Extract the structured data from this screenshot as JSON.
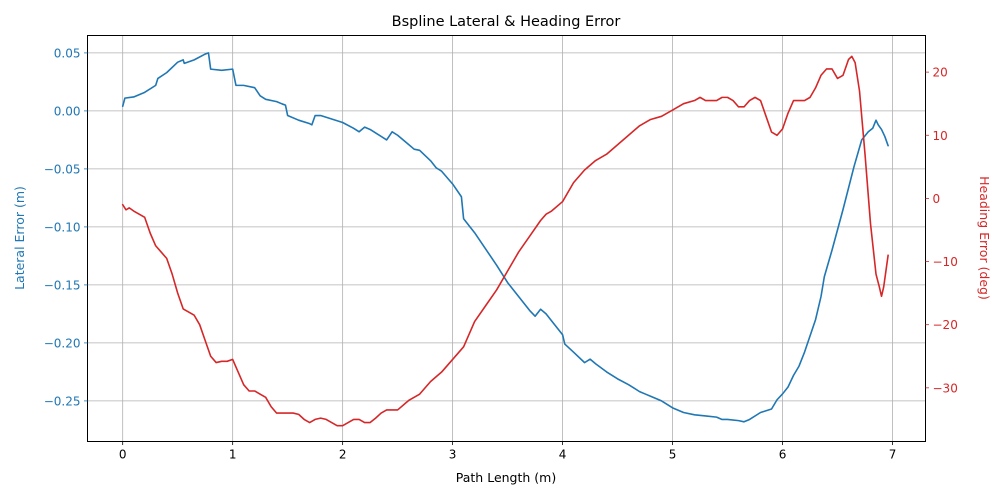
{
  "chart_data": {
    "type": "line",
    "title": "Bspline Lateral & Heading Error",
    "xlabel": "Path Length (m)",
    "ylabel_left": "Lateral Error (m)",
    "ylabel_right": "Heading Error (deg)",
    "xlim": [
      -0.32,
      7.3
    ],
    "ylim_left": [
      -0.285,
      0.065
    ],
    "ylim_right": [
      -38.5,
      25.8
    ],
    "grid": true,
    "x_ticks": [
      0,
      1,
      2,
      3,
      4,
      5,
      6,
      7
    ],
    "y_left_ticks": [
      0.05,
      0.0,
      -0.05,
      -0.1,
      -0.15,
      -0.2,
      -0.25
    ],
    "y_left_tick_labels": [
      "0.05",
      "0.00",
      "−0.05",
      "−0.10",
      "−0.15",
      "−0.20",
      "−0.25"
    ],
    "y_right_ticks": [
      20,
      10,
      0,
      -10,
      -20,
      -30
    ],
    "y_right_tick_labels": [
      "20",
      "10",
      "0",
      "−10",
      "−20",
      "−30"
    ],
    "colors": {
      "left": "#1f77b4",
      "right": "#d62728"
    },
    "series": [
      {
        "axis": "left",
        "x": [
          0.0,
          0.02,
          0.1,
          0.2,
          0.3,
          0.32,
          0.4,
          0.5,
          0.55,
          0.56,
          0.65,
          0.75,
          0.78,
          0.8,
          0.9,
          1.0,
          1.03,
          1.1,
          1.2,
          1.25,
          1.3,
          1.4,
          1.45,
          1.48,
          1.5,
          1.6,
          1.7,
          1.72,
          1.75,
          1.8,
          1.9,
          2.0,
          2.1,
          2.15,
          2.2,
          2.25,
          2.3,
          2.4,
          2.45,
          2.5,
          2.6,
          2.65,
          2.7,
          2.8,
          2.85,
          2.9,
          3.0,
          3.08,
          3.1,
          3.2,
          3.3,
          3.4,
          3.5,
          3.6,
          3.7,
          3.75,
          3.8,
          3.85,
          3.9,
          4.0,
          4.02,
          4.1,
          4.2,
          4.25,
          4.3,
          4.4,
          4.5,
          4.6,
          4.7,
          4.75,
          4.8,
          4.9,
          5.0,
          5.1,
          5.2,
          5.3,
          5.4,
          5.45,
          5.5,
          5.6,
          5.65,
          5.7,
          5.8,
          5.9,
          5.95,
          6.0,
          6.05,
          6.1,
          6.15,
          6.2,
          6.3,
          6.35,
          6.38,
          6.45,
          6.55,
          6.65,
          6.72,
          6.78,
          6.82,
          6.85,
          6.87,
          6.9,
          6.93,
          6.96
        ],
        "y": [
          0.004,
          0.011,
          0.012,
          0.016,
          0.022,
          0.028,
          0.033,
          0.042,
          0.044,
          0.041,
          0.044,
          0.049,
          0.05,
          0.036,
          0.035,
          0.036,
          0.022,
          0.022,
          0.02,
          0.013,
          0.01,
          0.008,
          0.006,
          0.005,
          -0.004,
          -0.008,
          -0.011,
          -0.012,
          -0.004,
          -0.004,
          -0.007,
          -0.01,
          -0.015,
          -0.018,
          -0.014,
          -0.016,
          -0.019,
          -0.025,
          -0.018,
          -0.021,
          -0.029,
          -0.033,
          -0.034,
          -0.043,
          -0.049,
          -0.052,
          -0.063,
          -0.074,
          -0.093,
          -0.105,
          -0.119,
          -0.133,
          -0.148,
          -0.16,
          -0.172,
          -0.177,
          -0.171,
          -0.175,
          -0.181,
          -0.193,
          -0.201,
          -0.208,
          -0.217,
          -0.214,
          -0.218,
          -0.225,
          -0.231,
          -0.236,
          -0.242,
          -0.244,
          -0.246,
          -0.25,
          -0.256,
          -0.26,
          -0.262,
          -0.263,
          -0.264,
          -0.266,
          -0.266,
          -0.267,
          -0.268,
          -0.266,
          -0.26,
          -0.257,
          -0.249,
          -0.244,
          -0.238,
          -0.228,
          -0.22,
          -0.208,
          -0.18,
          -0.16,
          -0.143,
          -0.12,
          -0.085,
          -0.048,
          -0.025,
          -0.018,
          -0.015,
          -0.008,
          -0.012,
          -0.016,
          -0.022,
          -0.03
        ]
      },
      {
        "axis": "right",
        "x": [
          0.0,
          0.03,
          0.06,
          0.1,
          0.15,
          0.2,
          0.25,
          0.3,
          0.35,
          0.4,
          0.45,
          0.5,
          0.55,
          0.6,
          0.65,
          0.7,
          0.75,
          0.8,
          0.85,
          0.9,
          0.95,
          1.0,
          1.05,
          1.1,
          1.15,
          1.2,
          1.25,
          1.3,
          1.35,
          1.4,
          1.45,
          1.5,
          1.55,
          1.6,
          1.65,
          1.7,
          1.75,
          1.8,
          1.85,
          1.9,
          1.95,
          2.0,
          2.05,
          2.1,
          2.15,
          2.2,
          2.25,
          2.3,
          2.35,
          2.4,
          2.45,
          2.5,
          2.6,
          2.7,
          2.8,
          2.9,
          3.0,
          3.1,
          3.2,
          3.3,
          3.4,
          3.5,
          3.6,
          3.7,
          3.8,
          3.85,
          3.9,
          4.0,
          4.1,
          4.2,
          4.3,
          4.4,
          4.5,
          4.6,
          4.7,
          4.8,
          4.9,
          5.0,
          5.1,
          5.2,
          5.25,
          5.3,
          5.4,
          5.45,
          5.5,
          5.55,
          5.6,
          5.65,
          5.7,
          5.75,
          5.8,
          5.85,
          5.9,
          5.95,
          6.0,
          6.05,
          6.1,
          6.15,
          6.2,
          6.25,
          6.3,
          6.35,
          6.4,
          6.45,
          6.5,
          6.55,
          6.6,
          6.63,
          6.66,
          6.7,
          6.75,
          6.8,
          6.85,
          6.88,
          6.9,
          6.92,
          6.94,
          6.96
        ],
        "y": [
          -1.0,
          -1.8,
          -1.5,
          -2.0,
          -2.5,
          -3.0,
          -5.5,
          -7.5,
          -8.5,
          -9.5,
          -12.0,
          -15.0,
          -17.5,
          -18.0,
          -18.5,
          -20.0,
          -22.5,
          -25.0,
          -26.0,
          -25.8,
          -25.8,
          -25.5,
          -27.5,
          -29.5,
          -30.5,
          -30.5,
          -31.0,
          -31.5,
          -33.0,
          -34.0,
          -34.0,
          -34.0,
          -34.0,
          -34.2,
          -35.0,
          -35.5,
          -35.0,
          -34.8,
          -35.0,
          -35.5,
          -36.0,
          -36.0,
          -35.5,
          -35.0,
          -35.0,
          -35.5,
          -35.5,
          -34.8,
          -34.0,
          -33.5,
          -33.5,
          -33.5,
          -32.0,
          -31.0,
          -29.0,
          -27.5,
          -25.5,
          -23.5,
          -19.5,
          -17.0,
          -14.5,
          -11.5,
          -8.5,
          -6.0,
          -3.5,
          -2.5,
          -2.0,
          -0.5,
          2.5,
          4.5,
          6.0,
          7.0,
          8.5,
          10.0,
          11.5,
          12.5,
          13.0,
          14.0,
          15.0,
          15.5,
          16.0,
          15.5,
          15.5,
          16.0,
          16.0,
          15.5,
          14.5,
          14.5,
          15.5,
          16.0,
          15.5,
          13.0,
          10.5,
          10.0,
          11.0,
          13.5,
          15.5,
          15.5,
          15.5,
          16.0,
          17.5,
          19.5,
          20.5,
          20.5,
          19.0,
          19.5,
          22.0,
          22.5,
          21.5,
          17.0,
          7.0,
          -4.0,
          -12.0,
          -14.0,
          -15.5,
          -14.0,
          -11.5,
          -9.0
        ]
      }
    ]
  }
}
